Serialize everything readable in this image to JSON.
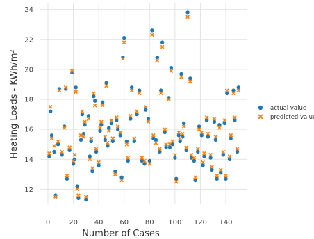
{
  "chart_data": {
    "type": "scatter",
    "xlabel": "Number of Cases",
    "ylabel_main": "Heating Loads - KWh/m",
    "ylabel_sup": "2",
    "xlim": [
      -6,
      158
    ],
    "ylim": [
      11.0,
      24.4
    ],
    "xticks": [
      0,
      20,
      40,
      60,
      80,
      100,
      120,
      140
    ],
    "yticks": [
      12,
      14,
      16,
      18,
      20,
      22,
      24
    ],
    "grid": true,
    "legend_position": "right",
    "series": [
      {
        "name": "actual value",
        "color": "#1f77b4",
        "marker": "circle",
        "x": [
          1,
          2,
          3,
          5,
          6,
          8,
          9,
          11,
          13,
          14,
          15,
          17,
          19,
          20,
          21,
          22,
          23,
          24,
          26,
          27,
          28,
          29,
          30,
          32,
          33,
          34,
          35,
          36,
          37,
          38,
          40,
          41,
          42,
          43,
          45,
          46,
          47,
          48,
          50,
          51,
          53,
          54,
          55,
          57,
          58,
          59,
          60,
          62,
          63,
          65,
          66,
          68,
          70,
          72,
          74,
          76,
          77,
          79,
          80,
          82,
          83,
          85,
          86,
          88,
          89,
          90,
          92,
          93,
          95,
          96,
          97,
          98,
          100,
          101,
          103,
          104,
          105,
          106,
          107,
          109,
          110,
          112,
          113,
          115,
          116,
          118,
          119,
          121,
          122,
          123,
          125,
          126,
          128,
          129,
          131,
          132,
          133,
          135,
          136,
          138,
          139,
          140,
          141,
          143,
          144,
          146,
          147,
          149,
          150
        ],
        "y": [
          14.2,
          17.2,
          15.6,
          14.5,
          11.6,
          15.0,
          18.7,
          14.3,
          16.2,
          18.7,
          12.7,
          14.6,
          19.8,
          13.7,
          14.0,
          18.8,
          12.2,
          11.4,
          15.3,
          17.0,
          15.7,
          16.3,
          11.3,
          16.9,
          14.2,
          15.2,
          13.2,
          18.2,
          17.9,
          14.5,
          13.6,
          15.9,
          16.3,
          17.8,
          15.3,
          19.1,
          14.9,
          16.1,
          16.4,
          15.2,
          13.2,
          16.6,
          16.0,
          15.6,
          12.8,
          20.8,
          22.1,
          15.2,
          13.9,
          16.7,
          18.8,
          15.2,
          17.0,
          18.6,
          13.9,
          13.7,
          17.3,
          16.7,
          13.9,
          22.6,
          15.4,
          15.3,
          20.8,
          14.5,
          18.6,
          21.8,
          15.8,
          14.8,
          18.1,
          14.8,
          20.1,
          15.0,
          14.1,
          12.7,
          15.6,
          15.2,
          19.7,
          15.5,
          16.4,
          14.6,
          23.8,
          19.4,
          14.1,
          13.9,
          12.6,
          14.5,
          16.2,
          15.6,
          13.6,
          14.2,
          16.6,
          15.5,
          14.1,
          13.3,
          16.5,
          15.3,
          12.7,
          16.3,
          13.1,
          14.3,
          16.4,
          12.7,
          18.4,
          14.0,
          15.4,
          18.6,
          16.6,
          14.5,
          18.8
        ]
      },
      {
        "name": "predicted value",
        "color": "#ff7f0e",
        "marker": "x",
        "x": [
          1,
          2,
          3,
          5,
          6,
          8,
          9,
          11,
          13,
          14,
          15,
          17,
          19,
          20,
          21,
          22,
          23,
          24,
          26,
          27,
          28,
          29,
          30,
          32,
          33,
          34,
          35,
          36,
          37,
          38,
          40,
          41,
          42,
          43,
          45,
          46,
          47,
          48,
          50,
          51,
          53,
          54,
          55,
          57,
          58,
          59,
          60,
          62,
          63,
          65,
          66,
          68,
          70,
          72,
          74,
          76,
          77,
          79,
          80,
          82,
          83,
          85,
          86,
          88,
          89,
          90,
          92,
          93,
          95,
          96,
          97,
          98,
          100,
          101,
          103,
          104,
          105,
          106,
          107,
          109,
          110,
          112,
          113,
          115,
          116,
          118,
          119,
          121,
          122,
          123,
          125,
          126,
          128,
          129,
          131,
          132,
          133,
          135,
          136,
          138,
          139,
          140,
          141,
          143,
          144,
          146,
          147,
          149,
          150
        ],
        "y": [
          14.4,
          17.5,
          15.4,
          14.9,
          11.5,
          15.2,
          18.6,
          14.5,
          16.1,
          18.8,
          12.9,
          14.8,
          19.9,
          13.9,
          14.3,
          18.5,
          12.0,
          11.6,
          15.6,
          17.2,
          15.5,
          16.5,
          11.5,
          16.7,
          14.0,
          15.4,
          13.4,
          18.4,
          17.6,
          14.7,
          13.8,
          16.1,
          16.5,
          17.6,
          15.5,
          18.9,
          15.1,
          15.9,
          16.6,
          15.4,
          13.0,
          16.8,
          16.2,
          15.8,
          12.6,
          20.7,
          21.8,
          15.0,
          14.1,
          16.9,
          18.6,
          15.4,
          17.2,
          18.4,
          14.1,
          13.9,
          17.5,
          16.5,
          13.7,
          22.3,
          15.6,
          15.1,
          20.6,
          14.7,
          18.4,
          21.5,
          16.0,
          15.0,
          18.0,
          15.0,
          19.9,
          15.2,
          14.3,
          12.5,
          15.8,
          15.4,
          19.5,
          15.7,
          16.2,
          14.8,
          23.5,
          19.2,
          14.3,
          14.1,
          12.8,
          14.7,
          16.0,
          15.8,
          13.8,
          14.4,
          16.8,
          15.7,
          14.3,
          13.5,
          16.7,
          15.5,
          12.9,
          16.1,
          13.3,
          14.5,
          16.6,
          12.9,
          18.6,
          14.2,
          15.6,
          18.4,
          16.8,
          14.7,
          18.6
        ]
      }
    ]
  }
}
